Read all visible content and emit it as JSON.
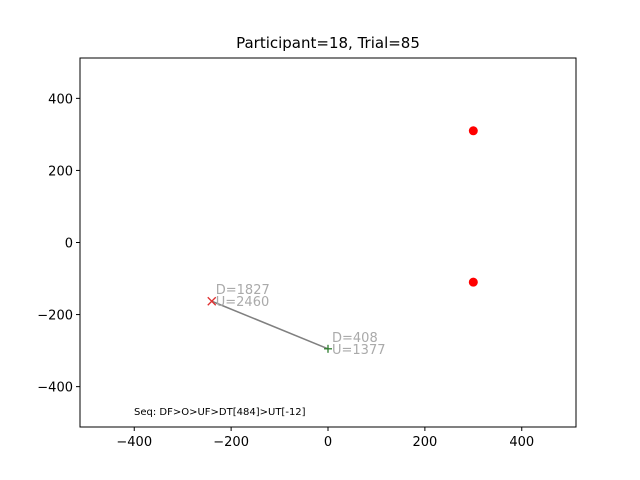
{
  "chart_data": {
    "type": "scatter",
    "title": "Participant=18, Trial=85",
    "xlabel": "",
    "ylabel": "",
    "xlim": [
      -512,
      512
    ],
    "ylim": [
      -512,
      512
    ],
    "xticks": [
      -400,
      -200,
      0,
      200,
      400
    ],
    "yticks": [
      -400,
      -200,
      0,
      200,
      400
    ],
    "grid": false,
    "targets": [
      {
        "x": 300,
        "y": 310,
        "color": "#ff0000"
      },
      {
        "x": 300,
        "y": -110,
        "color": "#ff0000"
      }
    ],
    "path": {
      "color": "#808080",
      "start": {
        "x": 0,
        "y": -295,
        "marker": "+",
        "color": "#2e7d2e",
        "labels": [
          "D=408",
          "U=1377"
        ]
      },
      "end": {
        "x": -240,
        "y": -163,
        "marker": "x",
        "color": "#e03030",
        "labels": [
          "D=1827",
          "U=2460"
        ]
      }
    },
    "annotation_color": "#aaaaaa",
    "sequence_text": "Seq: DF>O>UF>DT[484]>UT[-12]"
  }
}
